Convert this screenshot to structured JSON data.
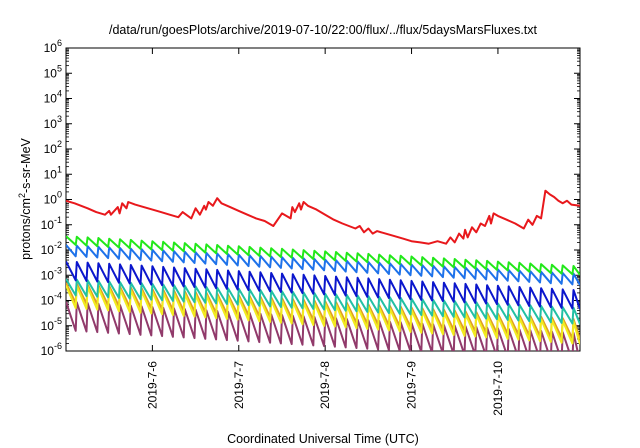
{
  "chart_data": {
    "type": "line",
    "title": "/data/run/goesPlots/archive/2019-07-10/22:00/flux/../flux/5daysMarsFluxes.txt",
    "xlabel": "Coordinated Universal Time (UTC)",
    "ylabel_main": "protons/cm",
    "ylabel_sup": "2",
    "ylabel_rest": "-s-sr-MeV",
    "yscale": "log",
    "ylim_exp": [
      -6,
      6
    ],
    "yticks": [
      {
        "base": "10",
        "exp": "-6",
        "value": -6
      },
      {
        "base": "10",
        "exp": "-5",
        "value": -5
      },
      {
        "base": "10",
        "exp": "-4",
        "value": -4
      },
      {
        "base": "10",
        "exp": "-3",
        "value": -3
      },
      {
        "base": "10",
        "exp": "-2",
        "value": -2
      },
      {
        "base": "10",
        "exp": "-1",
        "value": -1
      },
      {
        "base": "10",
        "exp": "0",
        "value": 0
      },
      {
        "base": "10",
        "exp": "1",
        "value": 1
      },
      {
        "base": "10",
        "exp": "2",
        "value": 2
      },
      {
        "base": "10",
        "exp": "3",
        "value": 3
      },
      {
        "base": "10",
        "exp": "4",
        "value": 4
      },
      {
        "base": "10",
        "exp": "5",
        "value": 5
      },
      {
        "base": "10",
        "exp": "6",
        "value": 6
      }
    ],
    "xlim_days": [
      5.0,
      10.95
    ],
    "xticks": [
      {
        "label": "2019-7-6",
        "day": 6.0
      },
      {
        "label": "2019-7-7",
        "day": 7.0
      },
      {
        "label": "2019-7-8",
        "day": 8.0
      },
      {
        "label": "2019-7-9",
        "day": 9.0
      },
      {
        "label": "2019-7-10",
        "day": 10.0
      }
    ],
    "grid": false,
    "series": [
      {
        "color": "#e8181c",
        "x": [
          5.0,
          5.1,
          5.25,
          5.35,
          5.45,
          5.5,
          5.52,
          5.6,
          5.62,
          5.65,
          5.7,
          5.72,
          5.8,
          5.9,
          6.0,
          6.1,
          6.2,
          6.3,
          6.35,
          6.45,
          6.5,
          6.55,
          6.6,
          6.62,
          6.65,
          6.7,
          6.75,
          6.8,
          6.9,
          7.0,
          7.1,
          7.2,
          7.3,
          7.4,
          7.5,
          7.6,
          7.62,
          7.65,
          7.7,
          7.72,
          7.75,
          7.8,
          7.9,
          8.0,
          8.1,
          8.2,
          8.35,
          8.4,
          8.45,
          8.5,
          8.55,
          8.6,
          8.7,
          8.8,
          8.9,
          9.0,
          9.1,
          9.2,
          9.3,
          9.4,
          9.45,
          9.5,
          9.55,
          9.6,
          9.62,
          9.65,
          9.7,
          9.75,
          9.8,
          9.85,
          9.9,
          9.92,
          9.95,
          10.0,
          10.1,
          10.2,
          10.3,
          10.35,
          10.4,
          10.45,
          10.5,
          10.55,
          10.6,
          10.65,
          10.7,
          10.75,
          10.8,
          10.85,
          10.95
        ],
        "y": [
          -0.05,
          -0.15,
          -0.35,
          -0.5,
          -0.6,
          -0.45,
          -0.6,
          -0.3,
          -0.55,
          -0.15,
          -0.35,
          -0.1,
          -0.2,
          -0.3,
          -0.4,
          -0.5,
          -0.6,
          -0.7,
          -0.5,
          -0.75,
          -0.35,
          -0.6,
          -0.25,
          -0.4,
          -0.1,
          -0.25,
          0.05,
          -0.15,
          -0.3,
          -0.45,
          -0.6,
          -0.75,
          -0.85,
          -1.05,
          -0.55,
          -0.75,
          -0.3,
          -0.5,
          -0.15,
          -0.4,
          -0.1,
          -0.25,
          -0.4,
          -0.6,
          -0.8,
          -0.95,
          -1.15,
          -1.05,
          -1.3,
          -1.15,
          -1.35,
          -1.25,
          -1.35,
          -1.45,
          -1.55,
          -1.65,
          -1.7,
          -1.75,
          -1.65,
          -1.75,
          -1.5,
          -1.7,
          -1.35,
          -1.55,
          -1.2,
          -1.5,
          -1.1,
          -1.3,
          -0.95,
          -1.05,
          -0.65,
          -0.95,
          -0.55,
          -0.65,
          -0.8,
          -0.95,
          -1.15,
          -0.8,
          -1.0,
          -0.65,
          -0.75,
          0.35,
          0.2,
          0.1,
          -0.05,
          -0.15,
          -0.05,
          -0.2,
          -0.25
        ]
      }
    ],
    "sawtooth_series": [
      {
        "color": "#22e81a",
        "start": -1.45,
        "end": -2.65,
        "depth": 0.35
      },
      {
        "color": "#1e72ea",
        "start": -1.8,
        "end": -2.95,
        "depth": 0.45
      },
      {
        "color": "#0b16cc",
        "start": -2.45,
        "end": -3.6,
        "depth": 0.75
      },
      {
        "color": "#22c0a4",
        "start": -3.15,
        "end": -4.3,
        "depth": 0.65
      },
      {
        "color": "#f2ec1e",
        "start": -3.4,
        "end": -4.85,
        "depth": 0.9
      },
      {
        "color": "#e0a020",
        "start": -3.3,
        "end": -4.75,
        "depth": 0.8
      },
      {
        "color": "#913a6b",
        "start": -4.05,
        "end": -5.3,
        "depth": 1.15
      }
    ],
    "sawtooth_period_days": 0.125
  }
}
